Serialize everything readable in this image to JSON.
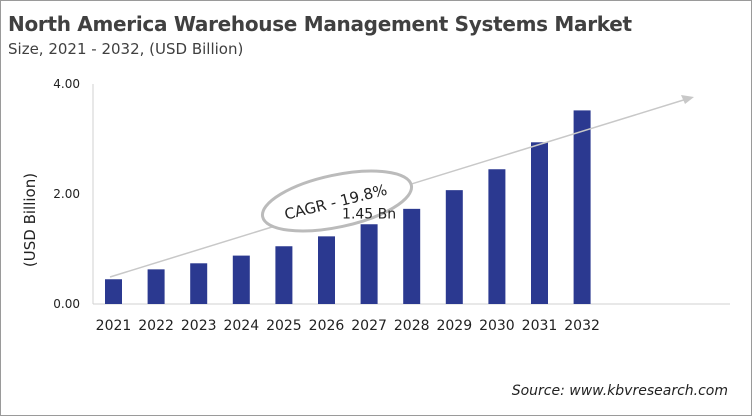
{
  "chart_data": {
    "type": "bar",
    "title": "North America Warehouse Management Systems Market",
    "subtitle": "Size, 2021 - 2032, (USD Billion)",
    "ylabel": "(USD Billion)",
    "xlabel": "",
    "ylim": [
      0,
      4
    ],
    "yticks": [
      "0.00",
      "2.00",
      "4.00"
    ],
    "categories": [
      "2021",
      "2022",
      "2023",
      "2024",
      "2025",
      "2026",
      "2027",
      "2028",
      "2029",
      "2030",
      "2031",
      "2032"
    ],
    "values": [
      0.45,
      0.63,
      0.74,
      0.88,
      1.05,
      1.23,
      1.45,
      1.73,
      2.07,
      2.45,
      2.94,
      3.52
    ],
    "bar_color": "#2b3990",
    "data_label": {
      "category": "2027",
      "text": "1.45 Bn"
    },
    "annotation": "CAGR - 19.8%",
    "grid": false,
    "source": "Source: www.kbvresearch.com"
  }
}
